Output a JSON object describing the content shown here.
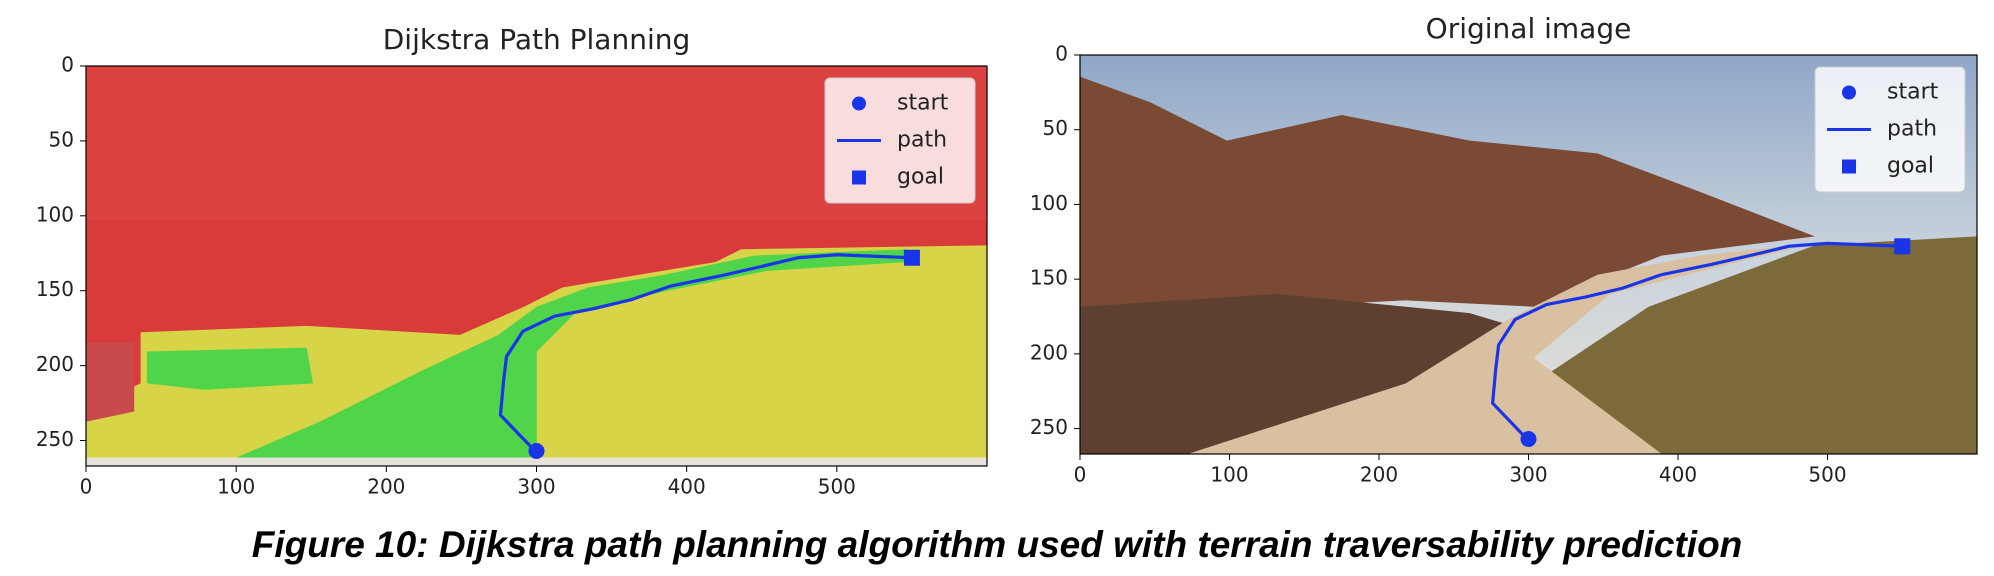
{
  "chart_data": [
    {
      "type": "line",
      "title": "Dijkstra Path Planning",
      "xlim": [
        0,
        600
      ],
      "ylim": [
        0,
        267
      ],
      "invert_y": true,
      "xticks": [
        0,
        100,
        200,
        300,
        400,
        500
      ],
      "yticks": [
        0,
        50,
        100,
        150,
        200,
        250
      ],
      "legend": "upper right",
      "series": [
        {
          "name": "start",
          "color": "#1a35e8",
          "marker": "circle",
          "x": [
            300
          ],
          "values": [
            257
          ]
        },
        {
          "name": "path",
          "color": "#1a35e8",
          "marker": "line",
          "x": [
            299,
            276,
            278,
            280,
            291,
            312,
            338,
            363,
            389,
            423,
            449,
            474,
            500,
            551
          ],
          "values": [
            257,
            233,
            211,
            194,
            177,
            167,
            162,
            156,
            147,
            140,
            134,
            128,
            126,
            128
          ]
        },
        {
          "name": "goal",
          "color": "#1a35e8",
          "marker": "square",
          "x": [
            550
          ],
          "values": [
            128
          ]
        }
      ]
    },
    {
      "type": "line",
      "title": "Original image",
      "xlim": [
        0,
        600
      ],
      "ylim": [
        0,
        267
      ],
      "invert_y": true,
      "xticks": [
        0,
        100,
        200,
        300,
        400,
        500
      ],
      "yticks": [
        0,
        50,
        100,
        150,
        200,
        250
      ],
      "legend": "upper right",
      "series": [
        {
          "name": "start",
          "color": "#1a35e8",
          "marker": "circle",
          "x": [
            300
          ],
          "values": [
            257
          ]
        },
        {
          "name": "path",
          "color": "#1a35e8",
          "marker": "line",
          "x": [
            299,
            276,
            278,
            280,
            291,
            312,
            338,
            363,
            389,
            423,
            449,
            474,
            500,
            551
          ],
          "values": [
            257,
            233,
            211,
            194,
            177,
            167,
            162,
            156,
            147,
            140,
            134,
            128,
            126,
            128
          ]
        },
        {
          "name": "goal",
          "color": "#1a35e8",
          "marker": "square",
          "x": [
            550
          ],
          "values": [
            128
          ]
        }
      ]
    }
  ],
  "caption": "Figure 10: Dijkstra path planning algorithm used with terrain traversability prediction"
}
